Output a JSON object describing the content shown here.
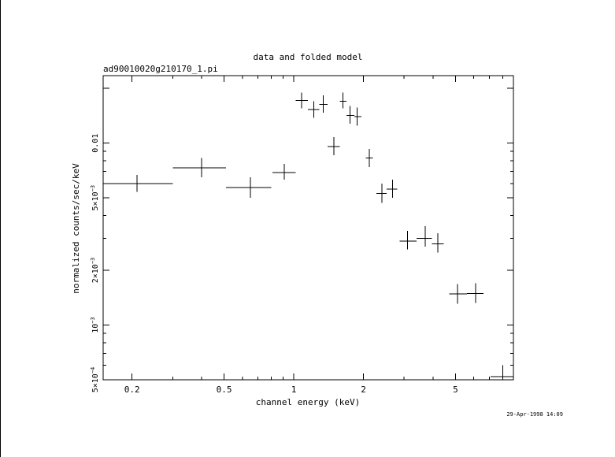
{
  "chart_data": {
    "type": "scatter",
    "title": "data and folded model",
    "subtitle": "ad90010020g210170_1.pi",
    "xlabel": "channel energy (keV)",
    "ylabel": "normalized counts/sec/keV",
    "timestamp": "29-Apr-1998 14:09",
    "x_scale": "log",
    "y_scale": "log",
    "xlim": [
      0.15,
      8.9
    ],
    "ylim": [
      0.0005,
      0.0235
    ],
    "grid": false,
    "x_tick_labels": [
      {
        "value": 0.2,
        "label": "0.2"
      },
      {
        "value": 0.5,
        "label": "0.5"
      },
      {
        "value": 1,
        "label": "1"
      },
      {
        "value": 2,
        "label": "2"
      },
      {
        "value": 5,
        "label": "5"
      }
    ],
    "y_tick_labels": [
      {
        "value": 0.0005,
        "mant": "5×10",
        "exp": "−4"
      },
      {
        "value": 0.001,
        "mant": "10",
        "exp": "−3"
      },
      {
        "value": 0.002,
        "mant": "2×10",
        "exp": "−3"
      },
      {
        "value": 0.005,
        "mant": "5×10",
        "exp": "−3"
      },
      {
        "value": 0.01,
        "mant": "0.01",
        "exp": ""
      }
    ],
    "series": [
      {
        "points": [
          {
            "x": 0.21,
            "xlo": 0.155,
            "xhi": 0.3,
            "y": 0.006,
            "ylo": 0.0054,
            "yhi": 0.0067
          },
          {
            "x": 0.4,
            "xlo": 0.3,
            "xhi": 0.51,
            "y": 0.0073,
            "ylo": 0.0065,
            "yhi": 0.0083
          },
          {
            "x": 0.65,
            "xlo": 0.51,
            "xhi": 0.8,
            "y": 0.0057,
            "ylo": 0.005,
            "yhi": 0.0065
          },
          {
            "x": 0.91,
            "xlo": 0.81,
            "xhi": 1.02,
            "y": 0.0069,
            "ylo": 0.0063,
            "yhi": 0.0077
          },
          {
            "x": 1.08,
            "xlo": 1.02,
            "xhi": 1.15,
            "y": 0.0172,
            "ylo": 0.0155,
            "yhi": 0.019
          },
          {
            "x": 1.22,
            "xlo": 1.15,
            "xhi": 1.29,
            "y": 0.0153,
            "ylo": 0.0138,
            "yhi": 0.017
          },
          {
            "x": 1.34,
            "xlo": 1.29,
            "xhi": 1.4,
            "y": 0.0163,
            "ylo": 0.0147,
            "yhi": 0.0183
          },
          {
            "x": 1.49,
            "xlo": 1.4,
            "xhi": 1.58,
            "y": 0.0096,
            "ylo": 0.0086,
            "yhi": 0.0108
          },
          {
            "x": 1.63,
            "xlo": 1.58,
            "xhi": 1.69,
            "y": 0.017,
            "ylo": 0.0155,
            "yhi": 0.019
          },
          {
            "x": 1.75,
            "xlo": 1.69,
            "xhi": 1.83,
            "y": 0.0142,
            "ylo": 0.0128,
            "yhi": 0.016
          },
          {
            "x": 1.88,
            "xlo": 1.83,
            "xhi": 1.96,
            "y": 0.014,
            "ylo": 0.0125,
            "yhi": 0.0157
          },
          {
            "x": 2.12,
            "xlo": 2.05,
            "xhi": 2.2,
            "y": 0.0083,
            "ylo": 0.0074,
            "yhi": 0.0093
          },
          {
            "x": 2.4,
            "xlo": 2.28,
            "xhi": 2.52,
            "y": 0.0053,
            "ylo": 0.0047,
            "yhi": 0.006
          },
          {
            "x": 2.67,
            "xlo": 2.52,
            "xhi": 2.8,
            "y": 0.0056,
            "ylo": 0.005,
            "yhi": 0.0063
          },
          {
            "x": 3.1,
            "xlo": 2.87,
            "xhi": 3.4,
            "y": 0.0029,
            "ylo": 0.0026,
            "yhi": 0.0033
          },
          {
            "x": 3.7,
            "xlo": 3.4,
            "xhi": 3.95,
            "y": 0.003,
            "ylo": 0.0027,
            "yhi": 0.0035
          },
          {
            "x": 4.2,
            "xlo": 3.95,
            "xhi": 4.45,
            "y": 0.0028,
            "ylo": 0.0025,
            "yhi": 0.0032
          },
          {
            "x": 5.1,
            "xlo": 4.7,
            "xhi": 5.6,
            "y": 0.00148,
            "ylo": 0.00131,
            "yhi": 0.00168
          },
          {
            "x": 6.1,
            "xlo": 5.6,
            "xhi": 6.6,
            "y": 0.00149,
            "ylo": 0.00132,
            "yhi": 0.0017
          },
          {
            "x": 8.0,
            "xlo": 7.1,
            "xhi": 8.85,
            "y": 0.00052,
            "ylo": 0.00047,
            "yhi": 0.0006
          }
        ]
      }
    ]
  }
}
